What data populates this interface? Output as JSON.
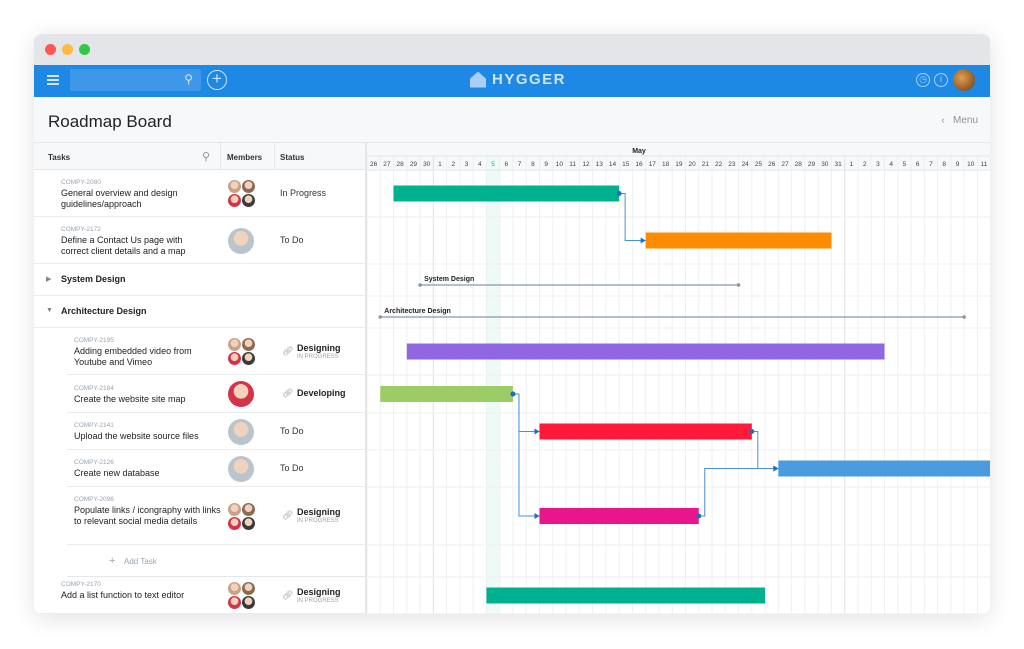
{
  "app": {
    "logo": "HYGGER",
    "search_placeholder": ""
  },
  "page": {
    "title": "Roadmap Board",
    "menu_label": "Menu"
  },
  "columns": {
    "tasks": "Tasks",
    "members": "Members",
    "status": "Status"
  },
  "timeline": {
    "month_label": "May",
    "days": [
      26,
      27,
      28,
      29,
      30,
      1,
      2,
      3,
      4,
      5,
      6,
      7,
      8,
      9,
      10,
      11,
      12,
      13,
      14,
      15,
      16,
      17,
      18,
      19,
      20,
      21,
      22,
      23,
      24,
      25,
      26,
      27,
      28,
      29,
      30,
      31,
      1,
      2,
      3,
      4,
      5,
      6,
      7,
      8,
      9,
      10,
      11
    ],
    "today": "May 5"
  },
  "rows": [
    {
      "id": "COMPY-2080",
      "name": "General overview and design guidelines/approach",
      "status": "In Progress",
      "members": 4,
      "bar": {
        "start": "Apr 28",
        "end": "May 14",
        "color": "#00b18f"
      }
    },
    {
      "id": "COMPY-2172",
      "name": "Define a Contact Us page with correct client details and a map",
      "status": "To Do",
      "members": 1,
      "bar": {
        "start": "May 17",
        "end": "May 30",
        "color": "#ff8c00"
      }
    },
    {
      "group": "System Design",
      "collapsed": true,
      "bar": {
        "start": "Apr 30",
        "end": "May 23"
      }
    },
    {
      "group": "Architecture Design",
      "collapsed": false,
      "bar": {
        "start": "Apr 27",
        "end": "Jun 9"
      }
    },
    {
      "id": "COMPY-2195",
      "name": "Adding embedded video from Youtube and Vimeo",
      "status": "Designing",
      "substatus": "IN PROGRESS",
      "members": 4,
      "bar": {
        "start": "Apr 29",
        "end": "Jun 3",
        "color": "#8f67e0"
      }
    },
    {
      "id": "COMPY-2184",
      "name": "Create the website site map",
      "status": "Developing",
      "members": 1,
      "bar": {
        "start": "Apr 27",
        "end": "May 6",
        "color": "#9ccc65"
      }
    },
    {
      "id": "COMPY-2141",
      "name": "Upload the website source files",
      "status": "To Do",
      "members": 1,
      "bar": {
        "start": "May 9",
        "end": "May 24",
        "color": "#ff1a3c"
      }
    },
    {
      "id": "COMPY-2126",
      "name": "Create new database",
      "status": "To Do",
      "members": 1,
      "bar": {
        "start": "May 27",
        "end": "Jun 11+",
        "color": "#4a9be0"
      }
    },
    {
      "id": "COMPY-2096",
      "name": "Populate links / icongraphy with links to relevant social media details",
      "status": "Designing",
      "substatus": "IN PROGRESS",
      "members": 4,
      "bar": {
        "start": "May 9",
        "end": "May 20",
        "color": "#ea148c"
      }
    },
    {
      "add_task": "Add Task"
    },
    {
      "id": "COMPY-2170",
      "name": "Add a list function to text editor",
      "status": "Designing",
      "substatus": "IN PROGRESS",
      "members": 4,
      "bar": {
        "start": "May 5",
        "end": "May 25",
        "color": "#00b18f"
      }
    }
  ],
  "dependencies": [
    [
      "COMPY-2080",
      "COMPY-2172"
    ],
    [
      "COMPY-2184",
      "COMPY-2141"
    ],
    [
      "COMPY-2184",
      "COMPY-2096"
    ],
    [
      "COMPY-2141",
      "COMPY-2126"
    ],
    [
      "COMPY-2096",
      "COMPY-2126"
    ]
  ]
}
